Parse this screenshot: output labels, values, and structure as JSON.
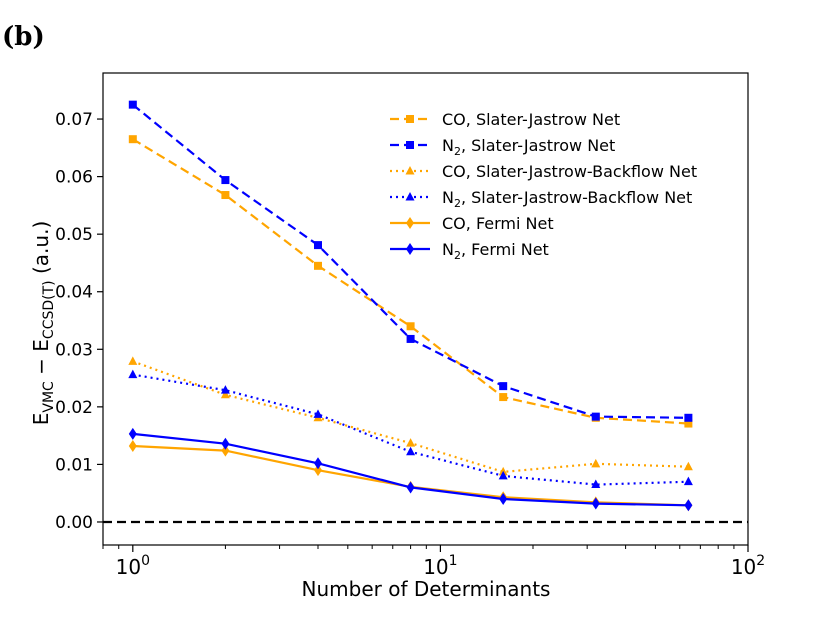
{
  "panel_label": "(b)",
  "chart_data": {
    "type": "line",
    "title": "",
    "xlabel": "Number of Determinants",
    "ylabel": {
      "base": "E",
      "sub1": "VMC",
      "mid": " − E",
      "sub2": "CCSD(T)",
      "suffix": " (a.u.)"
    },
    "xscale": "log",
    "xlim": [
      0.8,
      100
    ],
    "ylim": [
      -0.004,
      0.078
    ],
    "x_ticks": [
      {
        "value": 1,
        "base": "10",
        "exp": "0"
      },
      {
        "value": 10,
        "base": "10",
        "exp": "1"
      },
      {
        "value": 100,
        "base": "10",
        "exp": "2"
      }
    ],
    "y_ticks": [
      {
        "value": 0.0,
        "label": "0.00"
      },
      {
        "value": 0.01,
        "label": "0.01"
      },
      {
        "value": 0.02,
        "label": "0.02"
      },
      {
        "value": 0.03,
        "label": "0.03"
      },
      {
        "value": 0.04,
        "label": "0.04"
      },
      {
        "value": 0.05,
        "label": "0.05"
      },
      {
        "value": 0.06,
        "label": "0.06"
      },
      {
        "value": 0.07,
        "label": "0.07"
      }
    ],
    "reference_line": {
      "y": 0.0,
      "style": "dashed",
      "color": "#000000"
    },
    "x": [
      1,
      2,
      4,
      8,
      16,
      32,
      64
    ],
    "series": [
      {
        "name": "CO, Slater-Jastrow Net",
        "prefix": "CO",
        "sub": "",
        "rest": ", Slater-Jastrow Net",
        "color": "#FFA500",
        "dash": "dashed",
        "marker": "square",
        "values": [
          0.0665,
          0.0568,
          0.0445,
          0.034,
          0.0217,
          0.0181,
          0.0171
        ]
      },
      {
        "name": "N2, Slater-Jastrow Net",
        "prefix": "N",
        "sub": "2",
        "rest": ", Slater-Jastrow Net",
        "color": "#0000FF",
        "dash": "dashed",
        "marker": "square",
        "values": [
          0.0725,
          0.0594,
          0.0481,
          0.0318,
          0.0236,
          0.0183,
          0.0181
        ]
      },
      {
        "name": "CO, Slater-Jastrow-Backflow Net",
        "prefix": "CO",
        "sub": "",
        "rest": ", Slater-Jastrow-Backflow Net",
        "color": "#FFA500",
        "dash": "dotted",
        "marker": "triangle",
        "values": [
          0.0279,
          0.0221,
          0.0181,
          0.0137,
          0.0087,
          0.0101,
          0.0096
        ]
      },
      {
        "name": "N2, Slater-Jastrow-Backflow Net",
        "prefix": "N",
        "sub": "2",
        "rest": ", Slater-Jastrow-Backflow Net",
        "color": "#0000FF",
        "dash": "dotted",
        "marker": "triangle",
        "values": [
          0.0256,
          0.0229,
          0.0187,
          0.0122,
          0.008,
          0.0065,
          0.007
        ]
      },
      {
        "name": "CO, Fermi Net",
        "prefix": "CO",
        "sub": "",
        "rest": ", Fermi Net",
        "color": "#FFA500",
        "dash": "solid",
        "marker": "diamond",
        "values": [
          0.0132,
          0.0124,
          0.009,
          0.0061,
          0.0043,
          0.0034,
          0.0029
        ]
      },
      {
        "name": "N2, Fermi Net",
        "prefix": "N",
        "sub": "2",
        "rest": ", Fermi Net",
        "color": "#0000FF",
        "dash": "solid",
        "marker": "diamond",
        "values": [
          0.0153,
          0.0136,
          0.0102,
          0.006,
          0.004,
          0.0032,
          0.0029
        ]
      }
    ],
    "legend_position": "top-right",
    "grid": false
  }
}
